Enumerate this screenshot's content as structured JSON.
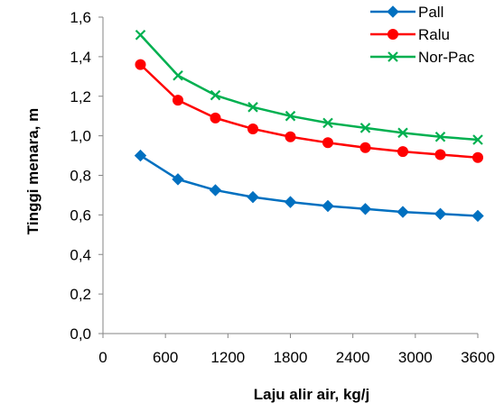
{
  "chart_data": {
    "type": "line",
    "title": "",
    "xlabel": "Laju alir air, kg/j",
    "ylabel": "Tinggi menara, m",
    "xlim": [
      0,
      3600
    ],
    "ylim": [
      0,
      1.6
    ],
    "xticks": [
      0,
      600,
      1200,
      1800,
      2400,
      3000,
      3600
    ],
    "yticks": [
      0,
      0.2,
      0.4,
      0.6,
      0.8,
      1.0,
      1.2,
      1.4,
      1.6
    ],
    "xtick_labels": [
      "0",
      "600",
      "1200",
      "1800",
      "2400",
      "3000",
      "3600"
    ],
    "ytick_labels": [
      "0,0",
      "0,2",
      "0,4",
      "0,6",
      "0,8",
      "1,0",
      "1,2",
      "1,4",
      "1,6"
    ],
    "grid": false,
    "legend_position": "top-right",
    "x": [
      360,
      720,
      1080,
      1440,
      1800,
      2160,
      2520,
      2880,
      3240,
      3600
    ],
    "series": [
      {
        "name": "Pall",
        "color": "#0070C0",
        "marker": "diamond",
        "values": [
          0.9,
          0.78,
          0.725,
          0.69,
          0.665,
          0.645,
          0.63,
          0.615,
          0.605,
          0.595
        ]
      },
      {
        "name": "Ralu",
        "color": "#FF0000",
        "marker": "circle",
        "values": [
          1.36,
          1.18,
          1.09,
          1.035,
          0.995,
          0.965,
          0.94,
          0.92,
          0.905,
          0.89
        ]
      },
      {
        "name": "Nor-Pac",
        "color": "#00B050",
        "marker": "x",
        "values": [
          1.51,
          1.305,
          1.205,
          1.145,
          1.1,
          1.065,
          1.04,
          1.015,
          0.995,
          0.98
        ]
      }
    ]
  }
}
